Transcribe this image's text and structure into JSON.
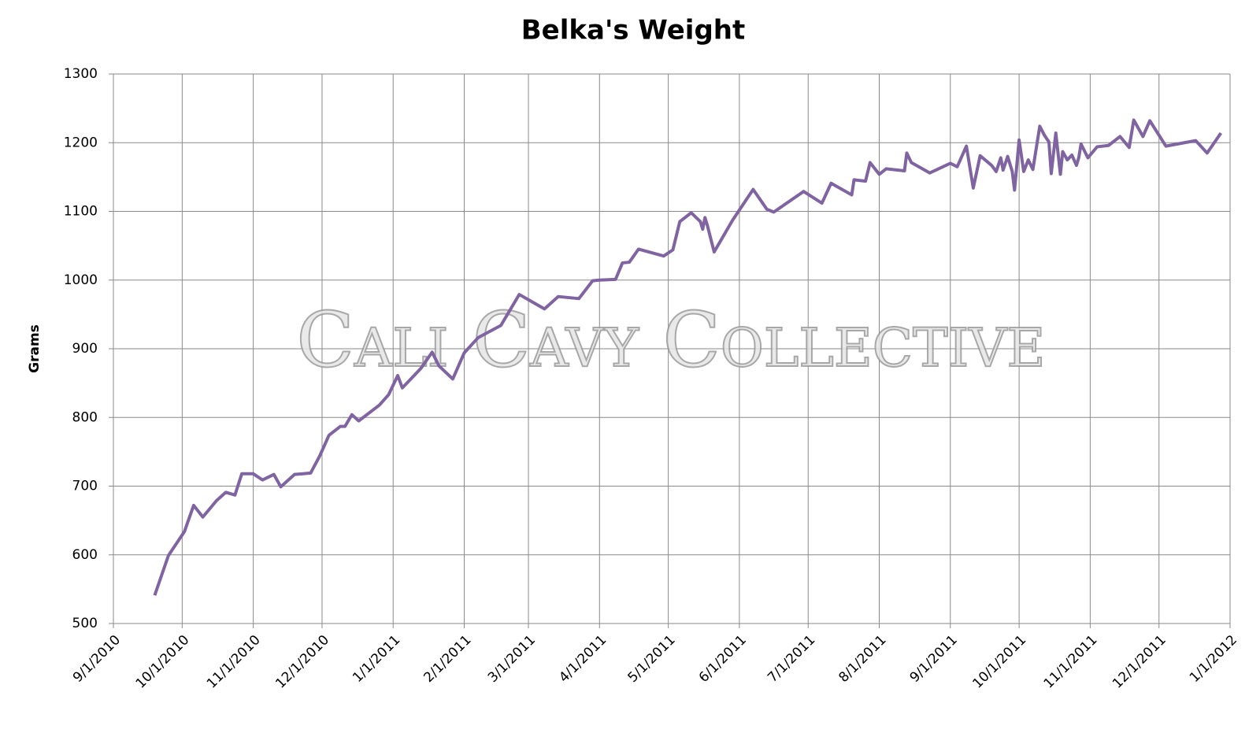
{
  "chart_data": {
    "type": "line",
    "title": "Belka's Weight",
    "y_label": "Grams",
    "watermark": "Cali Cavy Collective",
    "x": [
      "9/19/2010",
      "9/25/2010",
      "10/2/2010",
      "10/6/2010",
      "10/10/2010",
      "10/16/2010",
      "10/20/2010",
      "10/24/2010",
      "10/27/2010",
      "11/1/2010",
      "11/5/2010",
      "11/10/2010",
      "11/13/2010",
      "11/19/2010",
      "11/26/2010",
      "11/30/2010",
      "12/4/2010",
      "12/9/2010",
      "12/11/2010",
      "12/14/2010",
      "12/17/2010",
      "12/26/2010",
      "12/30/2010",
      "1/3/2011",
      "1/5/2011",
      "1/13/2011",
      "1/18/2011",
      "1/21/2011",
      "1/27/2011",
      "2/1/2011",
      "2/7/2011",
      "2/17/2011",
      "2/25/2011",
      "3/8/2011",
      "3/14/2011",
      "3/23/2011",
      "3/29/2011",
      "4/1/2011",
      "4/8/2011",
      "4/11/2011",
      "4/14/2011",
      "4/18/2011",
      "4/29/2011",
      "5/3/2011",
      "5/6/2011",
      "5/11/2011",
      "5/15/2011",
      "5/16/2011",
      "5/17/2011",
      "5/18/2011",
      "5/21/2011",
      "5/29/2011",
      "6/7/2011",
      "6/13/2011",
      "6/16/2011",
      "6/29/2011",
      "7/7/2011",
      "7/11/2011",
      "7/20/2011",
      "7/21/2011",
      "7/26/2011",
      "7/28/2011",
      "8/1/2011",
      "8/4/2011",
      "8/12/2011",
      "8/13/2011",
      "8/15/2011",
      "8/23/2011",
      "9/1/2011",
      "9/4/2011",
      "9/8/2011",
      "9/11/2011",
      "9/14/2011",
      "9/19/2011",
      "9/21/2011",
      "9/23/2011",
      "9/24/2011",
      "9/26/2011",
      "9/28/2011",
      "9/29/2011",
      "10/1/2011",
      "10/3/2011",
      "10/5/2011",
      "10/7/2011",
      "10/10/2011",
      "10/12/2011",
      "10/14/2011",
      "10/15/2011",
      "10/17/2011",
      "10/19/2011",
      "10/20/2011",
      "10/22/2011",
      "10/24/2011",
      "10/26/2011",
      "10/27/2011",
      "10/28/2011",
      "10/31/2011",
      "11/4/2011",
      "11/9/2011",
      "11/14/2011",
      "11/18/2011",
      "11/20/2011",
      "11/24/2011",
      "11/27/2011",
      "12/4/2011",
      "12/17/2011",
      "12/22/2011",
      "12/28/2011"
    ],
    "series": [
      {
        "name": "Weight",
        "color": "#8064a2",
        "values": [
          541,
          599,
          634,
          672,
          655,
          679,
          691,
          687,
          718,
          718,
          709,
          717,
          699,
          717,
          719,
          744,
          774,
          787,
          787,
          804,
          795,
          818,
          833,
          861,
          843,
          871,
          895,
          875,
          856,
          894,
          916,
          934,
          979,
          958,
          976,
          973,
          999,
          1000,
          1001,
          1025,
          1026,
          1045,
          1035,
          1044,
          1085,
          1098,
          1085,
          1074,
          1091,
          1080,
          1041,
          1087,
          1132,
          1103,
          1099,
          1129,
          1112,
          1141,
          1124,
          1146,
          1144,
          1171,
          1154,
          1162,
          1159,
          1185,
          1171,
          1156,
          1170,
          1165,
          1195,
          1134,
          1181,
          1167,
          1158,
          1178,
          1160,
          1180,
          1158,
          1131,
          1204,
          1158,
          1175,
          1161,
          1224,
          1211,
          1201,
          1155,
          1214,
          1154,
          1187,
          1175,
          1182,
          1167,
          1178,
          1198,
          1178,
          1194,
          1196,
          1209,
          1193,
          1233,
          1209,
          1232,
          1195,
          1203,
          1185,
          1214
        ]
      }
    ],
    "xlim": [
      "9/1/2010",
      "1/1/2012"
    ],
    "xticks": [
      "9/1/2010",
      "10/1/2010",
      "11/1/2010",
      "12/1/2010",
      "1/1/2011",
      "2/1/2011",
      "3/1/2011",
      "4/1/2011",
      "5/1/2011",
      "6/1/2011",
      "7/1/2011",
      "8/1/2011",
      "9/1/2011",
      "10/1/2011",
      "11/1/2011",
      "12/1/2011",
      "1/1/2012"
    ],
    "ylim": [
      500,
      1300
    ],
    "yticks": [
      500,
      600,
      700,
      800,
      900,
      1000,
      1100,
      1200,
      1300
    ],
    "grid": true
  }
}
